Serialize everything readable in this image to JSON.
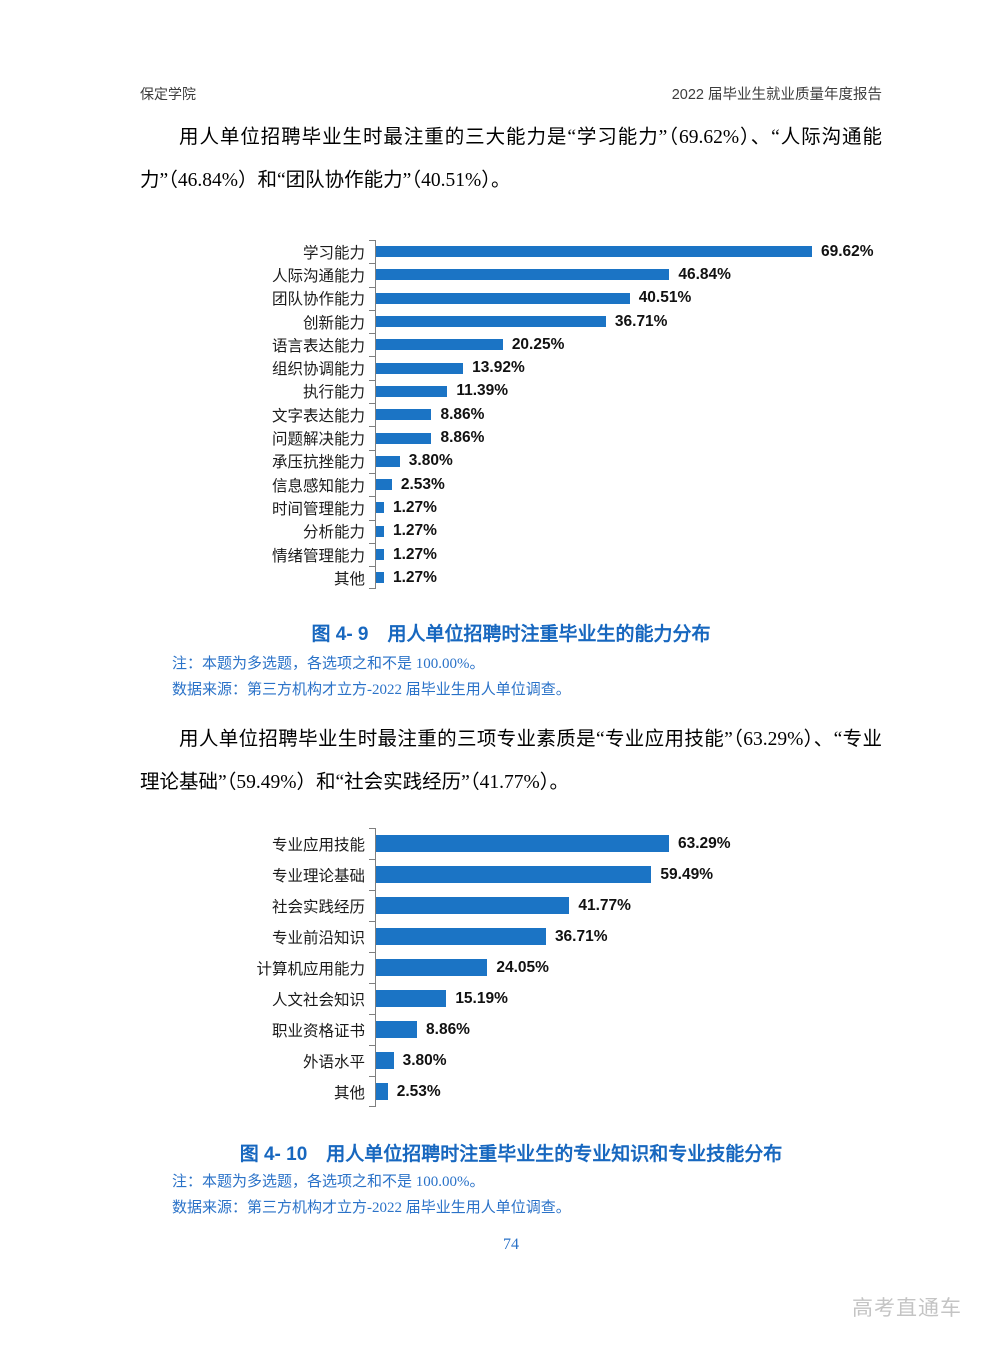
{
  "header": {
    "left": "保定学院",
    "right": "2022 届毕业生就业质量年度报告"
  },
  "paragraphs": {
    "p1": "用人单位招聘毕业生时最注重的三大能力是“学习能力”（69.62%）、“人际沟通能力”（46.84%）和“团队协作能力”（40.51%）。",
    "p2": "用人单位招聘毕业生时最注重的三项专业素质是“专业应用技能”（63.29%）、“专业理论基础”（59.49%）和“社会实践经历”（41.77%）。"
  },
  "chart_data": [
    {
      "type": "bar",
      "orientation": "horizontal",
      "title": "图 4- 9　用人单位招聘时注重毕业生的能力分布",
      "categories": [
        "学习能力",
        "人际沟通能力",
        "团队协作能力",
        "创新能力",
        "语言表达能力",
        "组织协调能力",
        "执行能力",
        "文字表达能力",
        "问题解决能力",
        "承压抗挫能力",
        "信息感知能力",
        "时间管理能力",
        "分析能力",
        "情绪管理能力",
        "其他"
      ],
      "values": [
        69.62,
        46.84,
        40.51,
        36.71,
        20.25,
        13.92,
        11.39,
        8.86,
        8.86,
        3.8,
        2.53,
        1.27,
        1.27,
        1.27,
        1.27
      ],
      "labels": [
        "69.62%",
        "46.84%",
        "40.51%",
        "36.71%",
        "20.25%",
        "13.92%",
        "11.39%",
        "8.86%",
        "8.86%",
        "3.80%",
        "2.53%",
        "1.27%",
        "1.27%",
        "1.27%",
        "1.27%"
      ],
      "bar_color": "#1B74C5",
      "axis_color": "#7f7f7f",
      "xlim": [
        0,
        75
      ],
      "grid": false,
      "legend": "none",
      "value_labels_shown": true
    },
    {
      "type": "bar",
      "orientation": "horizontal",
      "title": "图 4- 10　用人单位招聘时注重毕业生的专业知识和专业技能分布",
      "categories": [
        "专业应用技能",
        "专业理论基础",
        "社会实践经历",
        "专业前沿知识",
        "计算机应用能力",
        "人文社会知识",
        "职业资格证书",
        "外语水平",
        "其他"
      ],
      "values": [
        63.29,
        59.49,
        41.77,
        36.71,
        24.05,
        15.19,
        8.86,
        3.8,
        2.53
      ],
      "labels": [
        "63.29%",
        "59.49%",
        "41.77%",
        "36.71%",
        "24.05%",
        "15.19%",
        "8.86%",
        "3.80%",
        "2.53%"
      ],
      "bar_color": "#1B74C5",
      "axis_color": "#7f7f7f",
      "xlim": [
        0,
        70
      ],
      "grid": false,
      "legend": "none",
      "value_labels_shown": true
    }
  ],
  "figures": {
    "fig1": {
      "caption": "图 4- 9　用人单位招聘时注重毕业生的能力分布",
      "note": "注：本题为多选题，各选项之和不是 100.00%。",
      "source": "数据来源：第三方机构才立方-2022 届毕业生用人单位调查。"
    },
    "fig2": {
      "caption": "图 4- 10　用人单位招聘时注重毕业生的专业知识和专业技能分布",
      "note": "注：本题为多选题，各选项之和不是 100.00%。",
      "source": "数据来源：第三方机构才立方-2022 届毕业生用人单位调查。"
    }
  },
  "page_number": "74",
  "watermark": "高考直通车",
  "colors": {
    "bar_blue": "#1B74C5",
    "caption_blue": "#1767BF",
    "note_blue": "#2A72C8",
    "axis_gray": "#7f7f7f",
    "watermark_gray": "#c4c4c4"
  }
}
